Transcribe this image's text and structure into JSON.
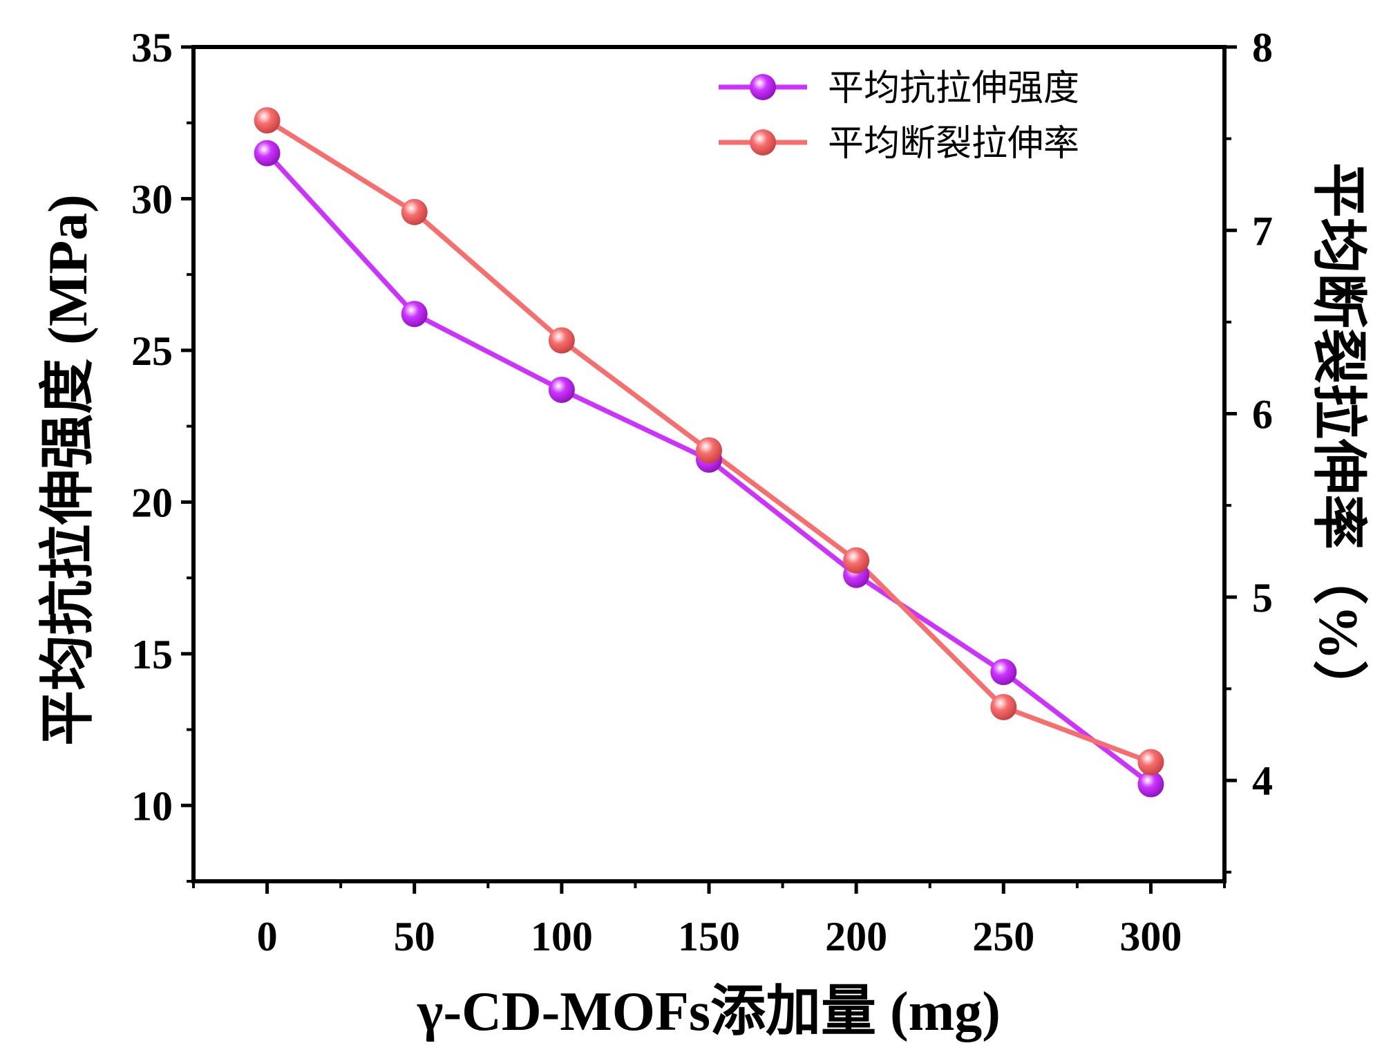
{
  "chart_data": {
    "type": "line",
    "x": [
      0,
      50,
      100,
      150,
      200,
      250,
      300
    ],
    "xlabel": "γ-CD-MOFs添加量 (mg)",
    "xlim": [
      -25,
      325
    ],
    "xticks": [
      "0",
      "50",
      "100",
      "150",
      "200",
      "250",
      "300"
    ],
    "ylabel_left": "平均抗拉伸强度 (MPa)",
    "ylim_left": [
      7.5,
      35
    ],
    "yticks_left": [
      "10",
      "15",
      "20",
      "25",
      "30",
      "35"
    ],
    "ylabel_right": "平均断裂拉伸率（%）",
    "ylim_right": [
      3.45,
      8
    ],
    "yticks_right": [
      "4",
      "5",
      "6",
      "7",
      "8"
    ],
    "series": [
      {
        "name": "平均抗拉伸强度",
        "axis": "left",
        "color": "#cc33ff",
        "values": [
          31.5,
          26.2,
          23.7,
          21.4,
          17.6,
          14.4,
          10.7
        ]
      },
      {
        "name": "平均断裂拉伸率",
        "axis": "right",
        "color": "#f76e6e",
        "values": [
          7.6,
          7.1,
          6.4,
          5.8,
          5.2,
          4.4,
          4.1
        ]
      }
    ],
    "legend_position": "top-right",
    "grid": false
  }
}
